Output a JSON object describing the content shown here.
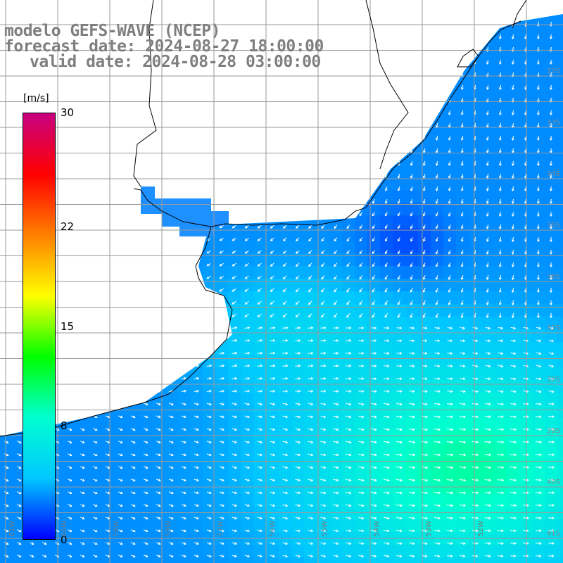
{
  "title": {
    "model": "modelo GEFS-WAVE (NCEP)",
    "forecast_date": "forecast date: 2024-08-27 18:00:00",
    "valid_date": "valid date: 2024-08-28 03:00:00"
  },
  "colorbar": {
    "unit": "[m/s]",
    "min": 0,
    "max": 30,
    "ticks": [
      {
        "value": 30,
        "label": "30"
      },
      {
        "value": 22,
        "label": "22"
      },
      {
        "value": 15,
        "label": "15"
      },
      {
        "value": 8,
        "label": "8"
      },
      {
        "value": 0,
        "label": "0"
      }
    ],
    "colors": [
      "#0000ff",
      "#00c8ff",
      "#00ffd0",
      "#00ff00",
      "#ffff00",
      "#ff8000",
      "#ff0000",
      "#c80080"
    ]
  },
  "map": {
    "field": "wind speed with direction vectors",
    "land_color": "#ffffff",
    "coast_color": "#000000",
    "grid_color": "#9a9a9a",
    "lat_labels": [
      "32S",
      "33S",
      "34S",
      "35S",
      "36S",
      "37S",
      "38S",
      "39S",
      "40S",
      "41S"
    ],
    "lon_labels": [
      "61W",
      "60W",
      "59W",
      "58W",
      "57W",
      "56W",
      "55W",
      "54W",
      "53W",
      "52W"
    ]
  }
}
